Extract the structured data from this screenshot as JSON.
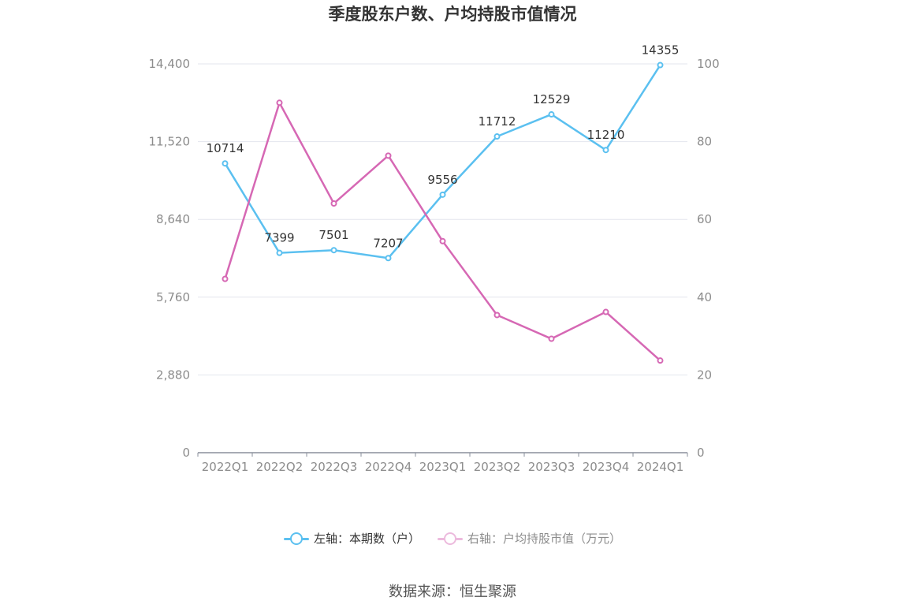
{
  "title": "季度股东户数、户均持股市值情况",
  "source": "数据来源：恒生聚源",
  "colors": {
    "left": "#5bc0f0",
    "right": "#d668b4",
    "grid": "#e3e6ee",
    "axis": "#8a8f9b",
    "tick": "#8c8c8c"
  },
  "chart_data": {
    "type": "line",
    "categories": [
      "2022Q1",
      "2022Q2",
      "2022Q3",
      "2022Q4",
      "2023Q1",
      "2023Q2",
      "2023Q3",
      "2023Q4",
      "2024Q1"
    ],
    "left_axis": {
      "ticks": [
        "0",
        "2,880",
        "5,760",
        "8,640",
        "11,520",
        "14,400"
      ],
      "ylim": [
        0,
        14400
      ]
    },
    "right_axis": {
      "ticks": [
        "0",
        "20",
        "40",
        "60",
        "80",
        "100"
      ],
      "ylim": [
        0,
        100
      ]
    },
    "series": [
      {
        "name": "左轴：本期数（户）",
        "axis": "left",
        "values": [
          10714,
          7399,
          7501,
          7207,
          9556,
          11712,
          12529,
          11210,
          14355
        ],
        "labels": [
          "10714",
          "7399",
          "7501",
          "7207",
          "9556",
          "11712",
          "12529",
          "11210",
          "14355"
        ]
      },
      {
        "name": "右轴：户均持股市值（万元）",
        "axis": "right",
        "values": [
          44.7,
          90.0,
          64.1,
          76.4,
          54.4,
          35.4,
          29.3,
          36.2,
          23.7
        ]
      }
    ],
    "grid": true,
    "legend_position": "bottom"
  }
}
